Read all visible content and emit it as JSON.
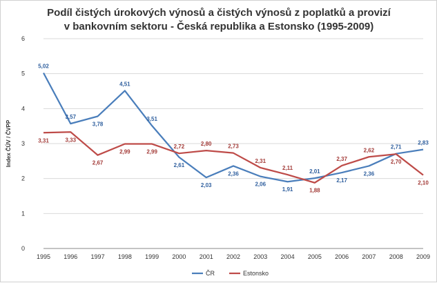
{
  "chart_data": {
    "type": "line",
    "title_lines": [
      "Podíl čistých úrokových výnosů a čistých výnosů z poplatků a provizí",
      "v bankovním sektoru - Česká republika a Estonsko (1995-2009)"
    ],
    "ylabel": "Index ČÚV / ČVPP",
    "xlabel": "",
    "ylim": [
      0,
      6
    ],
    "yticks": [
      "0",
      "1",
      "2",
      "3",
      "4",
      "5",
      "6"
    ],
    "grid": true,
    "legend_position": "bottom",
    "categories": [
      "1995",
      "1996",
      "1997",
      "1998",
      "1999",
      "2000",
      "2001",
      "2002",
      "2003",
      "2004",
      "2005",
      "2006",
      "2007",
      "2008",
      "2009"
    ],
    "series": [
      {
        "name": "ČR",
        "color": "#4a7ebb",
        "values": [
          5.02,
          3.57,
          3.78,
          4.51,
          3.51,
          2.61,
          2.03,
          2.36,
          2.06,
          1.91,
          2.01,
          2.17,
          2.36,
          2.71,
          2.83
        ],
        "labels": [
          "5,02",
          "3,57",
          "3,78",
          "4,51",
          "3,51",
          "2,61",
          "2,03",
          "2,36",
          "2,06",
          "1,91",
          "2,01",
          "2,17",
          "2,36",
          "2,71",
          "2,83"
        ],
        "label_pos": [
          "above",
          "above",
          "below",
          "above",
          "above",
          "below",
          "below",
          "below",
          "below",
          "below",
          "above",
          "below",
          "below",
          "above",
          "above"
        ]
      },
      {
        "name": "Estonsko",
        "color": "#be4b48",
        "values": [
          3.31,
          3.33,
          2.67,
          2.99,
          2.99,
          2.72,
          2.8,
          2.73,
          2.31,
          2.11,
          1.88,
          2.37,
          2.62,
          2.7,
          2.1
        ],
        "labels": [
          "3,31",
          "3,33",
          "2,67",
          "2,99",
          "2,99",
          "2,72",
          "2,80",
          "2,73",
          "2,31",
          "2,11",
          "1,88",
          "2,37",
          "2,62",
          "2,70",
          "2,10"
        ],
        "label_pos": [
          "below",
          "below",
          "below",
          "below",
          "below",
          "above",
          "above",
          "above",
          "above",
          "above",
          "below",
          "above",
          "above",
          "below",
          "below"
        ]
      }
    ]
  }
}
